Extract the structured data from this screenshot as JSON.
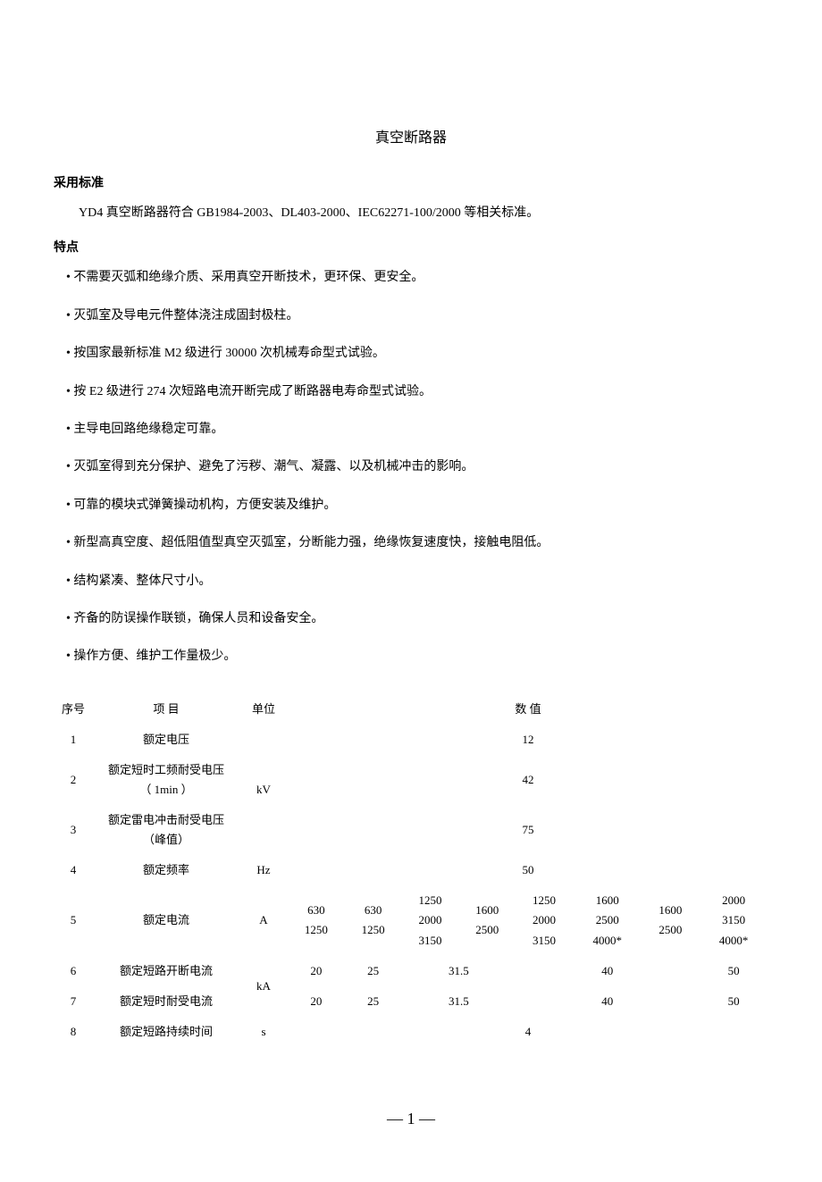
{
  "title": "真空断路器",
  "sections": {
    "std_heading": "采用标准",
    "std_text": "YD4 真空断路器符合 GB1984-2003、DL403-2000、IEC62271-100/2000 等相关标准。",
    "feat_heading": "特点",
    "features": [
      "不需要灭弧和绝缘介质、采用真空开断技术，更环保、更安全。",
      "灭弧室及导电元件整体浇注成固封极柱。",
      "按国家最新标准 M2 级进行 30000 次机械寿命型式试验。",
      "按 E2 级进行 274 次短路电流开断完成了断路器电寿命型式试验。",
      "主导电回路绝缘稳定可靠。",
      "灭弧室得到充分保护、避免了污秽、潮气、凝露、以及机械冲击的影响。",
      "可靠的模块式弹簧操动机构，方便安装及维护。",
      "新型高真空度、超低阻值型真空灭弧室，分断能力强，绝缘恢复速度快，接触电阻低。",
      "结构紧凑、整体尺寸小。",
      "齐备的防误操作联锁，确保人员和设备安全。",
      "操作方便、维护工作量极少。"
    ]
  },
  "table": {
    "header": {
      "seq": "序号",
      "item": "项 目",
      "unit": "单位",
      "value": "数 值"
    },
    "rows": {
      "r1": {
        "seq": "1",
        "item": "额定电压",
        "unit": "",
        "val": "12"
      },
      "r2": {
        "seq": "2",
        "item_l1": "额定短时工频耐受电压",
        "item_l2": "（ 1min ）",
        "unit": "kV",
        "val": "42"
      },
      "r3": {
        "seq": "3",
        "item_l1": "额定雷电冲击耐受电压",
        "item_l2": "（峰值）",
        "val": "75"
      },
      "r4": {
        "seq": "4",
        "item": "额定频率",
        "unit": "Hz",
        "val": "50"
      },
      "r5": {
        "seq": "5",
        "item": "额定电流",
        "unit": "A",
        "c1_l1": "630",
        "c1_l2": "1250",
        "c2_l1": "630",
        "c2_l2": "1250",
        "c3_l1": "1250",
        "c3_l2": "2000",
        "c3_l3": "3150",
        "c4_l1": "1600",
        "c4_l2": "2500",
        "c5_l1": "1250",
        "c5_l2": "2000",
        "c5_l3": "3150",
        "c6_l1": "1600",
        "c6_l2": "2500",
        "c6_l3": "4000*",
        "c7_l1": "1600",
        "c7_l2": "2500",
        "c8_l1": "2000",
        "c8_l2": "3150",
        "c8_l3": "4000*"
      },
      "r6": {
        "seq": "6",
        "item": "额定短路开断电流",
        "unit": "kA",
        "c1": "20",
        "c2": "25",
        "c3": "31.5",
        "c4": "40",
        "c5": "50"
      },
      "r7": {
        "seq": "7",
        "item": "额定短时耐受电流",
        "c1": "20",
        "c2": "25",
        "c3": "31.5",
        "c4": "40",
        "c5": "50"
      },
      "r8": {
        "seq": "8",
        "item": "额定短路持续时间",
        "unit": "s",
        "val": "4"
      }
    }
  },
  "page_number": "— 1 —"
}
